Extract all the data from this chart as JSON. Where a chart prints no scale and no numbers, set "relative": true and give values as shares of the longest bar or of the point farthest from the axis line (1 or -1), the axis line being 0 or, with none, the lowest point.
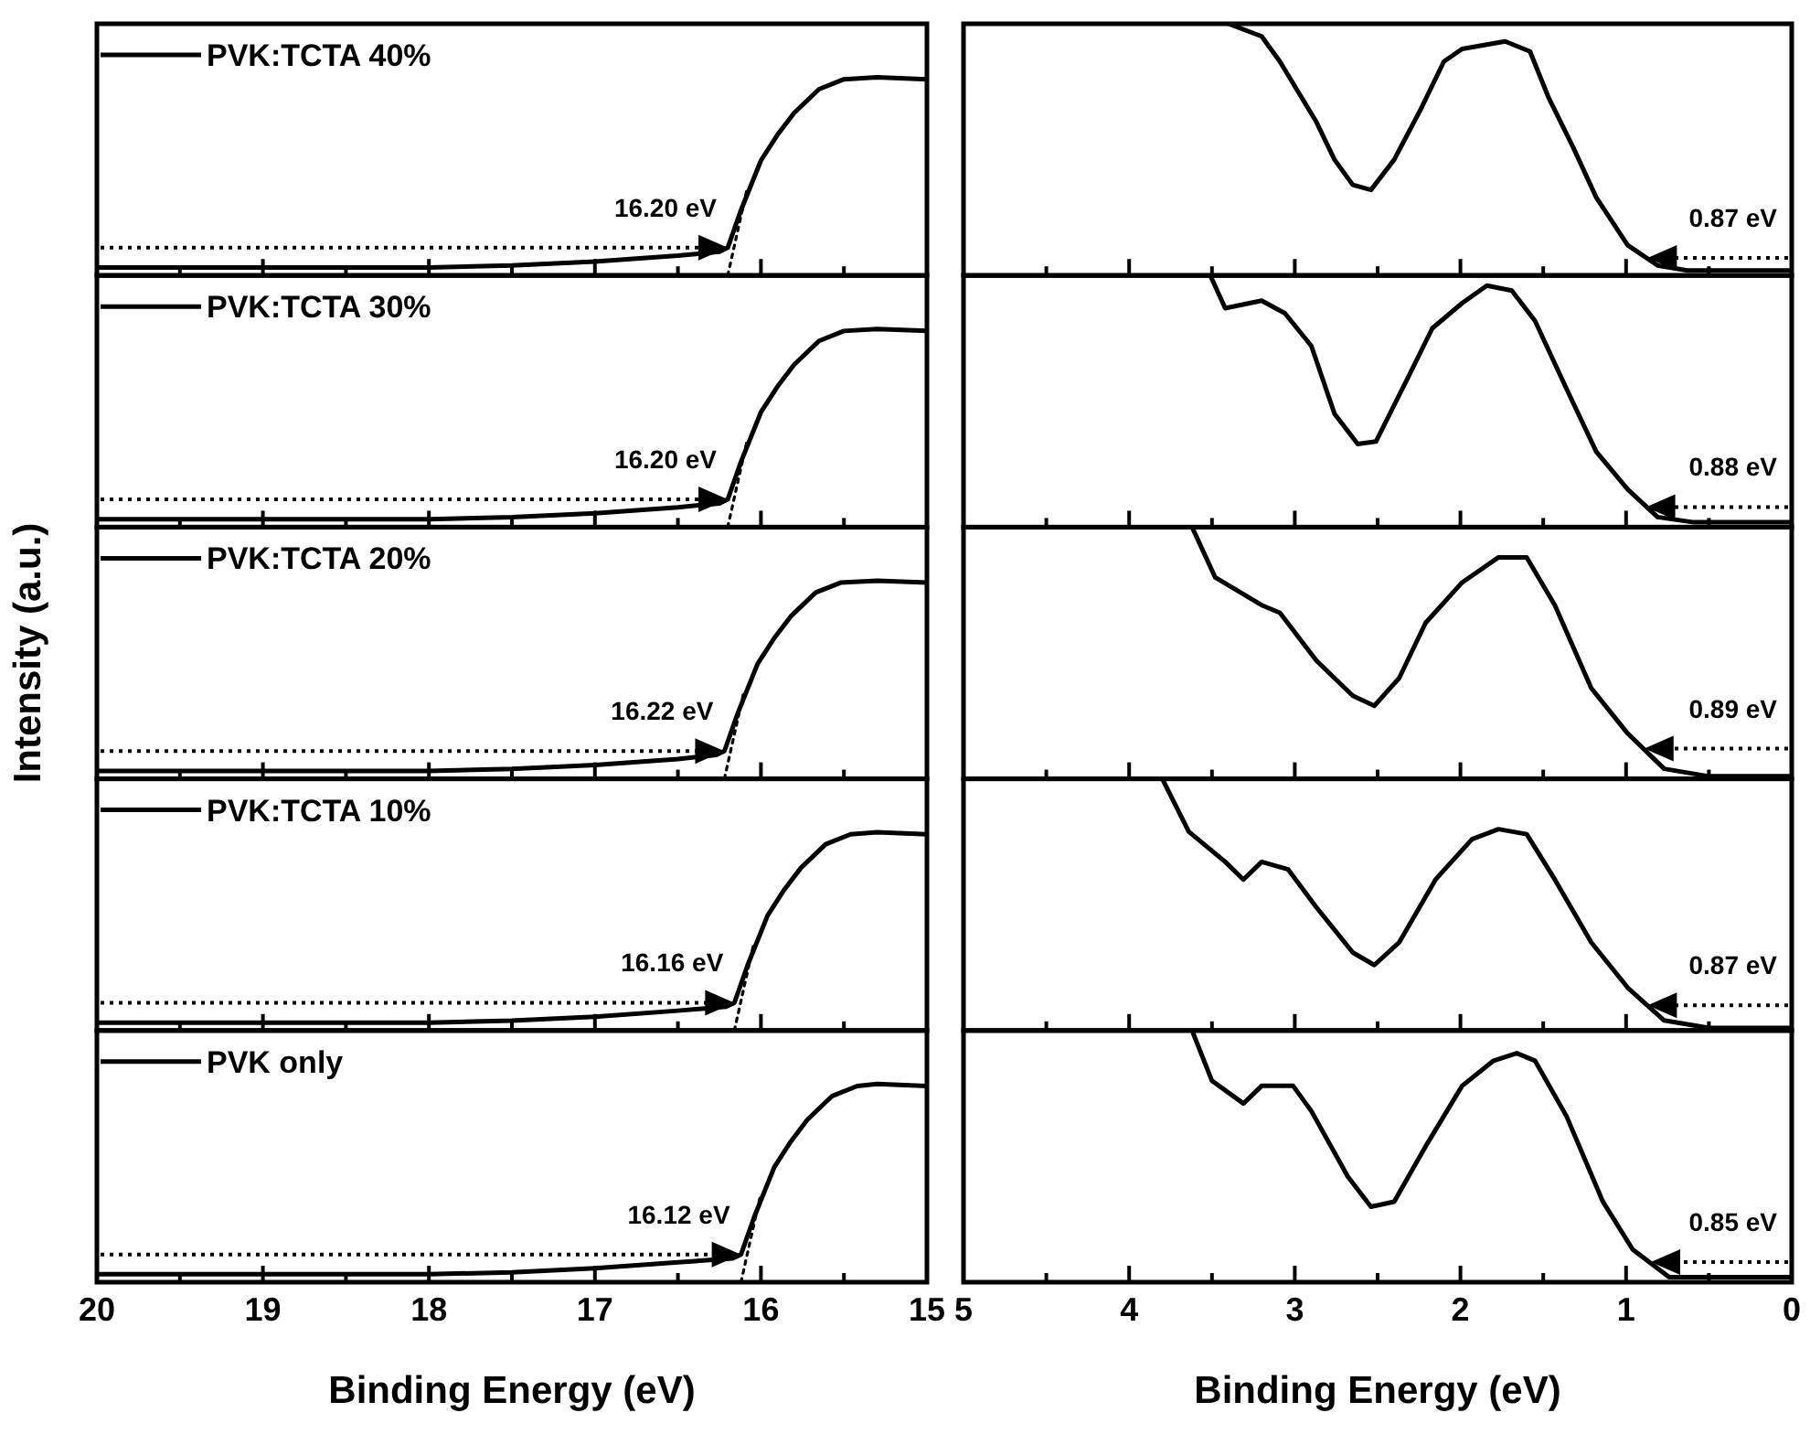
{
  "chart_data": [
    {
      "type": "line",
      "relative": true,
      "xlim": [
        20,
        15
      ],
      "xticks": [
        20,
        {
          "value": 19.5,
          "label": null
        },
        19,
        {
          "value": 18.5,
          "label": null
        },
        18,
        {
          "value": 17.5,
          "label": null
        },
        17,
        {
          "value": 16.5,
          "label": null
        },
        16,
        {
          "value": 15.5,
          "label": null
        },
        15
      ],
      "tick_labels": false,
      "legend": "top left",
      "series": [
        {
          "name": "PVK:TCTA 40%",
          "color": "#000000",
          "x": [
            20,
            19,
            18,
            17.5,
            17,
            16.5,
            16.25,
            16.2,
            16.12,
            16.0,
            15.9,
            15.8,
            15.65,
            15.5,
            15.3,
            15.0
          ],
          "values": [
            0.04,
            0.04,
            0.04,
            0.05,
            0.07,
            0.1,
            0.12,
            0.14,
            0.33,
            0.58,
            0.71,
            0.82,
            0.94,
            0.99,
            1.0,
            0.99
          ]
        },
        {
          "color": "#000000",
          "line_style": "dotted",
          "x": [
            16.2,
            16.08
          ],
          "values": [
            0,
            0.45
          ]
        }
      ],
      "annotations": [
        {
          "text": "16.20 eV",
          "x": 16.2,
          "y": 0.14
        }
      ]
    },
    {
      "type": "line",
      "relative": true,
      "xlim": [
        5,
        0
      ],
      "xticks": [
        5,
        {
          "value": 4.5,
          "label": null
        },
        4,
        {
          "value": 3.5,
          "label": null
        },
        3,
        {
          "value": 2.5,
          "label": null
        },
        2,
        {
          "value": 1.5,
          "label": null
        },
        1,
        {
          "value": 0.5,
          "label": null
        },
        0
      ],
      "tick_labels": false,
      "series": [
        {
          "color": "#000000",
          "x": [
            3.4,
            3.2,
            3.09,
            2.87,
            2.76,
            2.65,
            2.54,
            2.4,
            2.24,
            2.1,
            1.99,
            1.73,
            1.58,
            1.47,
            1.32,
            1.18,
            0.99,
            0.81,
            0.63,
            0
          ],
          "values": [
            1.0,
            0.95,
            0.85,
            0.61,
            0.46,
            0.36,
            0.34,
            0.46,
            0.66,
            0.85,
            0.9,
            0.93,
            0.89,
            0.71,
            0.51,
            0.31,
            0.12,
            0.04,
            0.02,
            0.02
          ]
        }
      ],
      "annotations": [
        {
          "text": "0.87 eV",
          "x": 0.87,
          "y": 0.07
        }
      ]
    },
    {
      "type": "line",
      "relative": true,
      "xlim": [
        20,
        15
      ],
      "xticks": [
        20,
        {
          "value": 19.5,
          "label": null
        },
        19,
        {
          "value": 18.5,
          "label": null
        },
        18,
        {
          "value": 17.5,
          "label": null
        },
        17,
        {
          "value": 16.5,
          "label": null
        },
        16,
        {
          "value": 15.5,
          "label": null
        },
        15
      ],
      "tick_labels": false,
      "legend": "top left",
      "series": [
        {
          "name": "PVK:TCTA 30%",
          "color": "#000000",
          "x": [
            20,
            19,
            18,
            17.5,
            17,
            16.5,
            16.25,
            16.2,
            16.12,
            16.0,
            15.9,
            15.8,
            15.65,
            15.5,
            15.3,
            15.0
          ],
          "values": [
            0.04,
            0.04,
            0.04,
            0.05,
            0.07,
            0.1,
            0.12,
            0.14,
            0.33,
            0.58,
            0.71,
            0.82,
            0.94,
            0.99,
            1.0,
            0.99
          ]
        },
        {
          "color": "#000000",
          "line_style": "dotted",
          "x": [
            16.2,
            16.08
          ],
          "values": [
            0,
            0.45
          ]
        }
      ],
      "annotations": [
        {
          "text": "16.20 eV",
          "x": 16.2,
          "y": 0.14
        }
      ]
    },
    {
      "type": "line",
      "relative": true,
      "xlim": [
        5,
        0
      ],
      "xticks": [
        5,
        {
          "value": 4.5,
          "label": null
        },
        4,
        {
          "value": 3.5,
          "label": null
        },
        3,
        {
          "value": 2.5,
          "label": null
        },
        2,
        {
          "value": 1.5,
          "label": null
        },
        1,
        {
          "value": 0.5,
          "label": null
        },
        0
      ],
      "tick_labels": false,
      "series": [
        {
          "color": "#000000",
          "x": [
            3.51,
            3.42,
            3.2,
            3.06,
            2.9,
            2.76,
            2.62,
            2.51,
            2.32,
            2.17,
            1.99,
            1.84,
            1.69,
            1.55,
            1.36,
            1.18,
            0.99,
            0.81,
            0.6,
            0
          ],
          "values": [
            1.0,
            0.87,
            0.9,
            0.85,
            0.72,
            0.45,
            0.33,
            0.34,
            0.59,
            0.79,
            0.89,
            0.96,
            0.94,
            0.82,
            0.55,
            0.3,
            0.15,
            0.04,
            0.02,
            0.02
          ]
        }
      ],
      "annotations": [
        {
          "text": "0.88 eV",
          "x": 0.88,
          "y": 0.08
        }
      ]
    },
    {
      "type": "line",
      "relative": true,
      "xlim": [
        20,
        15
      ],
      "xticks": [
        20,
        {
          "value": 19.5,
          "label": null
        },
        19,
        {
          "value": 18.5,
          "label": null
        },
        18,
        {
          "value": 17.5,
          "label": null
        },
        17,
        {
          "value": 16.5,
          "label": null
        },
        16,
        {
          "value": 15.5,
          "label": null
        },
        15
      ],
      "tick_labels": false,
      "legend": "top left",
      "ylabel": "Intensity (a.u.)",
      "series": [
        {
          "name": "PVK:TCTA 20%",
          "color": "#000000",
          "x": [
            20,
            19,
            18,
            17.5,
            17,
            16.5,
            16.27,
            16.22,
            16.14,
            16.02,
            15.92,
            15.82,
            15.67,
            15.52,
            15.3,
            15.0
          ],
          "values": [
            0.04,
            0.04,
            0.04,
            0.05,
            0.07,
            0.1,
            0.12,
            0.14,
            0.33,
            0.58,
            0.71,
            0.82,
            0.94,
            0.99,
            1.0,
            0.99
          ]
        },
        {
          "color": "#000000",
          "line_style": "dotted",
          "x": [
            16.22,
            16.1
          ],
          "values": [
            0,
            0.45
          ]
        }
      ],
      "annotations": [
        {
          "text": "16.22 eV",
          "x": 16.22,
          "y": 0.14
        }
      ]
    },
    {
      "type": "line",
      "relative": true,
      "xlim": [
        5,
        0
      ],
      "xticks": [
        5,
        {
          "value": 4.5,
          "label": null
        },
        4,
        {
          "value": 3.5,
          "label": null
        },
        3,
        {
          "value": 2.5,
          "label": null
        },
        2,
        {
          "value": 1.5,
          "label": null
        },
        1,
        {
          "value": 0.5,
          "label": null
        },
        0
      ],
      "tick_labels": false,
      "series": [
        {
          "color": "#000000",
          "x": [
            3.62,
            3.48,
            3.2,
            3.09,
            2.87,
            2.65,
            2.52,
            2.37,
            2.21,
            1.99,
            1.77,
            1.6,
            1.43,
            1.21,
            0.99,
            0.77,
            0.5,
            0
          ],
          "values": [
            1.0,
            0.8,
            0.69,
            0.66,
            0.47,
            0.33,
            0.29,
            0.4,
            0.62,
            0.78,
            0.88,
            0.88,
            0.69,
            0.36,
            0.18,
            0.04,
            0.01,
            0.01
          ]
        }
      ],
      "annotations": [
        {
          "text": "0.89 eV",
          "x": 0.89,
          "y": 0.12
        }
      ]
    },
    {
      "type": "line",
      "relative": true,
      "xlim": [
        20,
        15
      ],
      "xticks": [
        20,
        {
          "value": 19.5,
          "label": null
        },
        19,
        {
          "value": 18.5,
          "label": null
        },
        18,
        {
          "value": 17.5,
          "label": null
        },
        17,
        {
          "value": 16.5,
          "label": null
        },
        16,
        {
          "value": 15.5,
          "label": null
        },
        15
      ],
      "tick_labels": false,
      "legend": "top left",
      "series": [
        {
          "name": "PVK:TCTA 10%",
          "color": "#000000",
          "x": [
            20,
            19,
            18,
            17.5,
            17,
            16.5,
            16.21,
            16.16,
            16.08,
            15.96,
            15.86,
            15.76,
            15.61,
            15.46,
            15.3,
            15.0
          ],
          "values": [
            0.04,
            0.04,
            0.04,
            0.05,
            0.07,
            0.1,
            0.12,
            0.14,
            0.33,
            0.58,
            0.71,
            0.82,
            0.94,
            0.99,
            1.0,
            0.99
          ]
        },
        {
          "color": "#000000",
          "line_style": "dotted",
          "x": [
            16.16,
            16.04
          ],
          "values": [
            0,
            0.45
          ]
        }
      ],
      "annotations": [
        {
          "text": "16.16 eV",
          "x": 16.16,
          "y": 0.14
        }
      ]
    },
    {
      "type": "line",
      "relative": true,
      "xlim": [
        5,
        0
      ],
      "xticks": [
        5,
        {
          "value": 4.5,
          "label": null
        },
        4,
        {
          "value": 3.5,
          "label": null
        },
        3,
        {
          "value": 2.5,
          "label": null
        },
        2,
        {
          "value": 1.5,
          "label": null
        },
        1,
        {
          "value": 0.5,
          "label": null
        },
        0
      ],
      "tick_labels": false,
      "series": [
        {
          "color": "#000000",
          "x": [
            3.8,
            3.64,
            3.42,
            3.31,
            3.2,
            3.04,
            2.87,
            2.65,
            2.52,
            2.37,
            2.15,
            1.93,
            1.77,
            1.6,
            1.43,
            1.21,
            0.99,
            0.77,
            0.5,
            0
          ],
          "values": [
            1.0,
            0.79,
            0.67,
            0.6,
            0.67,
            0.64,
            0.49,
            0.31,
            0.26,
            0.35,
            0.6,
            0.76,
            0.8,
            0.78,
            0.6,
            0.35,
            0.17,
            0.04,
            0.01,
            0.01
          ]
        }
      ],
      "annotations": [
        {
          "text": "0.87 eV",
          "x": 0.87,
          "y": 0.1
        }
      ]
    },
    {
      "type": "line",
      "relative": true,
      "xlim": [
        20,
        15
      ],
      "xticks": [
        20,
        {
          "value": 19.5,
          "label": null
        },
        19,
        {
          "value": 18.5,
          "label": null
        },
        18,
        {
          "value": 17.5,
          "label": null
        },
        17,
        {
          "value": 16.5,
          "label": null
        },
        16,
        {
          "value": 15.5,
          "label": null
        },
        15
      ],
      "tick_labels": "x",
      "legend": "top left",
      "xlabel": "Binding Energy (eV)",
      "series": [
        {
          "name": "PVK only",
          "color": "#000000",
          "x": [
            20,
            19,
            18,
            17.5,
            17,
            16.5,
            16.17,
            16.12,
            16.04,
            15.92,
            15.82,
            15.72,
            15.57,
            15.42,
            15.3,
            15.0
          ],
          "values": [
            0.04,
            0.04,
            0.04,
            0.05,
            0.07,
            0.1,
            0.12,
            0.14,
            0.33,
            0.58,
            0.71,
            0.82,
            0.94,
            0.99,
            1.0,
            0.99
          ]
        },
        {
          "color": "#000000",
          "line_style": "dotted",
          "x": [
            16.12,
            16.0
          ],
          "values": [
            0,
            0.45
          ]
        }
      ],
      "annotations": [
        {
          "text": "16.12 eV",
          "x": 16.12,
          "y": 0.14
        }
      ]
    },
    {
      "type": "line",
      "relative": true,
      "xlim": [
        5,
        0
      ],
      "xticks": [
        5,
        {
          "value": 4.5,
          "label": null
        },
        4,
        {
          "value": 3.5,
          "label": null
        },
        3,
        {
          "value": 2.5,
          "label": null
        },
        2,
        {
          "value": 1.5,
          "label": null
        },
        1,
        {
          "value": 0.5,
          "label": null
        },
        0
      ],
      "tick_labels": "x",
      "xlabel": "Binding Energy (eV)",
      "series": [
        {
          "color": "#000000",
          "x": [
            3.62,
            3.5,
            3.31,
            3.2,
            3.01,
            2.9,
            2.68,
            2.54,
            2.4,
            2.21,
            1.99,
            1.8,
            1.66,
            1.55,
            1.36,
            1.14,
            0.96,
            0.74,
            0.5,
            0
          ],
          "values": [
            1.0,
            0.8,
            0.71,
            0.78,
            0.78,
            0.68,
            0.42,
            0.3,
            0.32,
            0.54,
            0.78,
            0.88,
            0.91,
            0.88,
            0.66,
            0.32,
            0.13,
            0.02,
            0.02,
            0.02
          ]
        }
      ],
      "annotations": [
        {
          "text": "0.85 eV",
          "x": 0.85,
          "y": 0.08
        }
      ]
    }
  ]
}
